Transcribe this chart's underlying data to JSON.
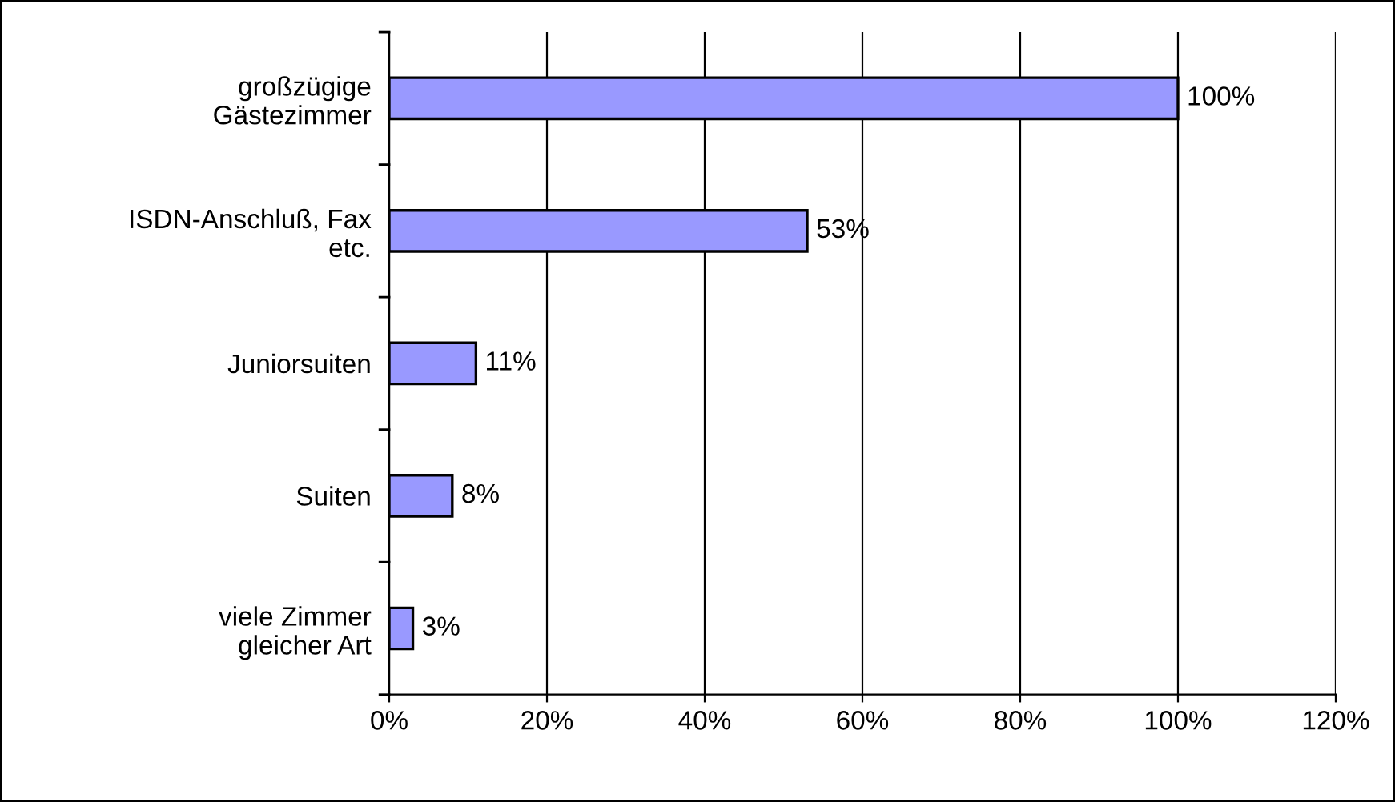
{
  "chart_data": {
    "type": "bar",
    "orientation": "horizontal",
    "categories": [
      "großzügige\nGästezimmer",
      "ISDN-Anschluß, Fax\netc.",
      "Juniorsuiten",
      "Suiten",
      "viele Zimmer\ngleicher Art"
    ],
    "values": [
      100,
      53,
      11,
      8,
      3
    ],
    "value_labels": [
      "100%",
      "53%",
      "11%",
      "8%",
      "3%"
    ],
    "color": "#9999ff",
    "xlim": [
      0,
      120
    ],
    "xticks": [
      {
        "value": 0,
        "label": "0%"
      },
      {
        "value": 20,
        "label": "20%"
      },
      {
        "value": 40,
        "label": "40%"
      },
      {
        "value": 60,
        "label": "60%"
      },
      {
        "value": 80,
        "label": "80%"
      },
      {
        "value": 100,
        "label": "100%"
      },
      {
        "value": 120,
        "label": "120%"
      }
    ],
    "grid": "x"
  }
}
